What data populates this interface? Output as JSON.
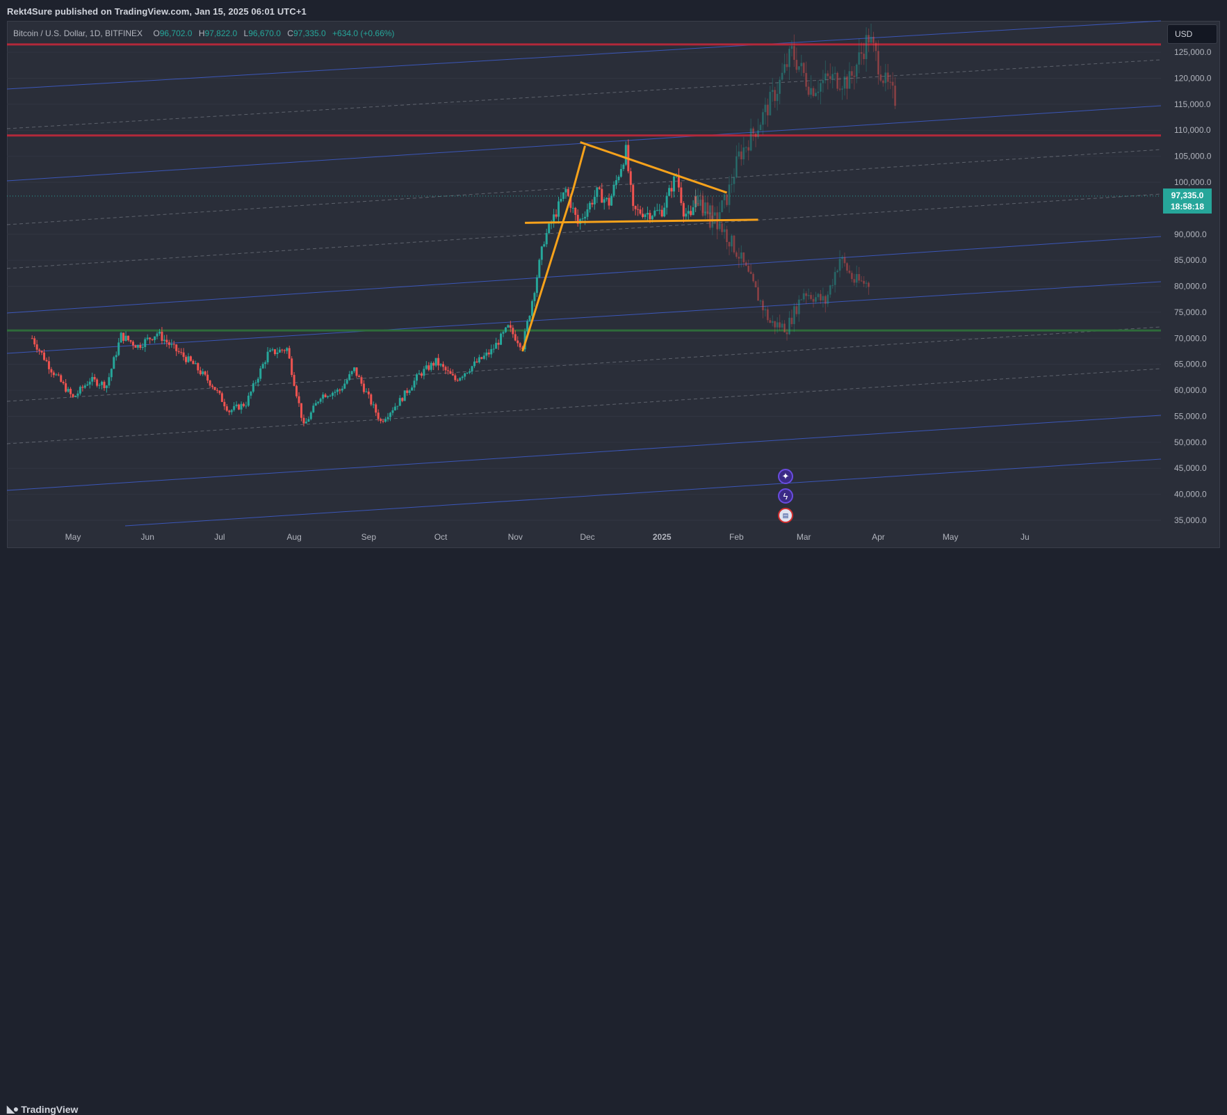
{
  "header": {
    "publisher": "Rekt4Sure published on TradingView.com, Jan 15, 2025 06:01 UTC+1"
  },
  "legend": {
    "symbol": "Bitcoin / U.S. Dollar, 1D, BITFINEX",
    "open_label": "O",
    "open": "96,702.0",
    "high_label": "H",
    "high": "97,822.0",
    "low_label": "L",
    "low": "96,670.0",
    "close_label": "C",
    "close": "97,335.0",
    "change": "+634.0 (+0.66%)"
  },
  "price_scale": {
    "currency": "USD",
    "last_price": "97,335.0",
    "countdown": "18:58:18",
    "ticks": [
      "125,000.0",
      "120,000.0",
      "115,000.0",
      "110,000.0",
      "105,000.0",
      "100,000.0",
      "90,000.0",
      "85,000.0",
      "80,000.0",
      "75,000.0",
      "70,000.0",
      "65,000.0",
      "60,000.0",
      "55,000.0",
      "50,000.0",
      "45,000.0",
      "40,000.0",
      "35,000.0"
    ]
  },
  "time_scale": {
    "ticks": [
      "May",
      "Jun",
      "Jul",
      "Aug",
      "Sep",
      "Oct",
      "Nov",
      "Dec",
      "2025",
      "Feb",
      "Mar",
      "Apr",
      "May",
      "Ju"
    ]
  },
  "events": {
    "icons": [
      "star-event-icon",
      "lightning-event-icon",
      "us-flag-event-icon"
    ]
  },
  "footer": {
    "brand": "TradingView"
  },
  "colors": {
    "up": "#26a69a",
    "down": "#ef5350",
    "resistance": "#b2283a",
    "support": "#2e6b3a",
    "channel": "#3f5ecf",
    "pattern": "#f7a21b",
    "background": "#2a2e39"
  },
  "chart_data": {
    "type": "candlestick",
    "title": "Bitcoin / U.S. Dollar, 1D, BITFINEX",
    "ylim": [
      33000,
      130000
    ],
    "y_ticks": [
      125000,
      120000,
      115000,
      110000,
      105000,
      100000,
      90000,
      85000,
      80000,
      75000,
      70000,
      65000,
      60000,
      55000,
      50000,
      45000,
      40000,
      35000
    ],
    "x_ticks": [
      "May",
      "Jun",
      "Jul",
      "Aug",
      "Sep",
      "Oct",
      "Nov",
      "Dec",
      "2025",
      "Feb",
      "Mar",
      "Apr",
      "May",
      "Ju"
    ],
    "last_price": 97335,
    "horizontal_levels": [
      {
        "name": "resistance-high",
        "price": 126500
      },
      {
        "name": "resistance-low",
        "price": 109000
      },
      {
        "name": "support",
        "price": 71500
      }
    ],
    "trend_path": [
      {
        "date": "2024-04-14",
        "price": 70000
      },
      {
        "date": "2024-04-22",
        "price": 64000
      },
      {
        "date": "2024-05-01",
        "price": 58500
      },
      {
        "date": "2024-05-08",
        "price": 62000
      },
      {
        "date": "2024-05-15",
        "price": 61000
      },
      {
        "date": "2024-05-21",
        "price": 70500
      },
      {
        "date": "2024-05-28",
        "price": 68500
      },
      {
        "date": "2024-06-05",
        "price": 71000
      },
      {
        "date": "2024-06-12",
        "price": 68000
      },
      {
        "date": "2024-06-20",
        "price": 65000
      },
      {
        "date": "2024-06-28",
        "price": 61000
      },
      {
        "date": "2024-07-05",
        "price": 56000
      },
      {
        "date": "2024-07-12",
        "price": 57500
      },
      {
        "date": "2024-07-21",
        "price": 67000
      },
      {
        "date": "2024-07-29",
        "price": 68000
      },
      {
        "date": "2024-08-05",
        "price": 53000
      },
      {
        "date": "2024-08-12",
        "price": 59000
      },
      {
        "date": "2024-08-20",
        "price": 60000
      },
      {
        "date": "2024-08-26",
        "price": 64000
      },
      {
        "date": "2024-09-06",
        "price": 54000
      },
      {
        "date": "2024-09-14",
        "price": 58000
      },
      {
        "date": "2024-09-22",
        "price": 63000
      },
      {
        "date": "2024-09-29",
        "price": 65500
      },
      {
        "date": "2024-10-07",
        "price": 62000
      },
      {
        "date": "2024-10-15",
        "price": 65000
      },
      {
        "date": "2024-10-22",
        "price": 67500
      },
      {
        "date": "2024-10-29",
        "price": 72000
      },
      {
        "date": "2024-11-04",
        "price": 68500
      },
      {
        "date": "2024-11-07",
        "price": 75000
      },
      {
        "date": "2024-11-13",
        "price": 89000
      },
      {
        "date": "2024-11-22",
        "price": 98500
      },
      {
        "date": "2024-11-27",
        "price": 92000
      },
      {
        "date": "2024-12-05",
        "price": 98000
      },
      {
        "date": "2024-12-10",
        "price": 96000
      },
      {
        "date": "2024-12-17",
        "price": 106000
      },
      {
        "date": "2024-12-20",
        "price": 94500
      },
      {
        "date": "2024-12-27",
        "price": 94000
      },
      {
        "date": "2025-01-01",
        "price": 94500
      },
      {
        "date": "2025-01-07",
        "price": 101500
      },
      {
        "date": "2025-01-10",
        "price": 94500
      },
      {
        "date": "2025-01-13",
        "price": 93000
      },
      {
        "date": "2025-01-15",
        "price": 97335
      }
    ],
    "projections": [
      {
        "name": "bullish-projection",
        "path": [
          {
            "date": "2025-01-15",
            "price": 97335
          },
          {
            "date": "2025-01-22",
            "price": 92000
          },
          {
            "date": "2025-01-28",
            "price": 97000
          },
          {
            "date": "2025-02-02",
            "price": 105000
          },
          {
            "date": "2025-02-10",
            "price": 111000
          },
          {
            "date": "2025-02-18",
            "price": 118000
          },
          {
            "date": "2025-02-24",
            "price": 125000
          },
          {
            "date": "2025-03-04",
            "price": 118000
          },
          {
            "date": "2025-03-12",
            "price": 120000
          },
          {
            "date": "2025-03-20",
            "price": 119500
          },
          {
            "date": "2025-03-28",
            "price": 128000
          },
          {
            "date": "2025-04-04",
            "price": 119000
          },
          {
            "date": "2025-04-08",
            "price": 116000
          }
        ]
      },
      {
        "name": "bearish-projection",
        "path": [
          {
            "date": "2025-01-15",
            "price": 97335
          },
          {
            "date": "2025-01-25",
            "price": 92000
          },
          {
            "date": "2025-02-02",
            "price": 86000
          },
          {
            "date": "2025-02-08",
            "price": 80000
          },
          {
            "date": "2025-02-15",
            "price": 73000
          },
          {
            "date": "2025-02-22",
            "price": 72000
          },
          {
            "date": "2025-03-01",
            "price": 79000
          },
          {
            "date": "2025-03-10",
            "price": 77000
          },
          {
            "date": "2025-03-16",
            "price": 85500
          },
          {
            "date": "2025-03-22",
            "price": 81000
          },
          {
            "date": "2025-03-28",
            "price": 80500
          }
        ]
      }
    ],
    "pattern": {
      "flagpole": [
        {
          "date": "2024-11-04",
          "price": 67500
        },
        {
          "date": "2024-11-25",
          "price": 98500
        },
        {
          "date": "2024-11-30",
          "price": 107000
        }
      ],
      "upper_line": [
        {
          "date": "2024-11-28",
          "price": 107700
        },
        {
          "date": "2025-01-28",
          "price": 98000
        }
      ],
      "lower_line": [
        {
          "date": "2024-11-05",
          "price": 92200
        },
        {
          "date": "2025-02-10",
          "price": 92800
        }
      ]
    }
  }
}
